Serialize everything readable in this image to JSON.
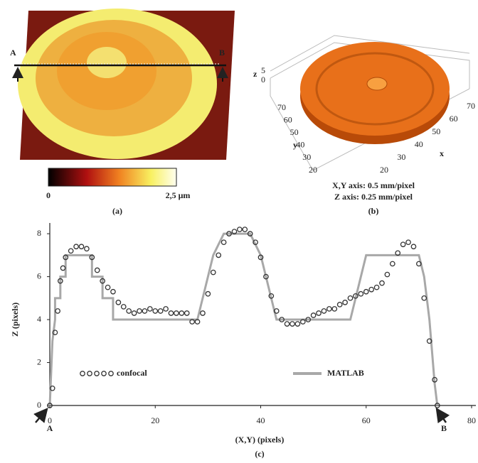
{
  "panel_a": {
    "label_a": "A",
    "label_b": "B",
    "colorbar_min": "0",
    "colorbar_max": "2,5 μm",
    "caption": "(a)"
  },
  "panel_b": {
    "x_label": "x",
    "y_label": "y",
    "z_label": "z",
    "xticks": [
      20,
      30,
      40,
      50,
      60,
      70
    ],
    "yticks": [
      20,
      30,
      40,
      50,
      60,
      70
    ],
    "zticks": [
      0,
      5
    ],
    "note_xy": "X,Y axis: 0.5 mm/pixel",
    "note_z": "Z axis: 0.25 mm/pixel",
    "caption": "(b)"
  },
  "chart_data": {
    "type": "line",
    "xlabel": "(X,Y) (pixels)",
    "ylabel": "Z (pixels)",
    "caption": "(c)",
    "annotations": [
      "A",
      "B"
    ],
    "xlim": [
      0,
      80
    ],
    "ylim": [
      0,
      8.5
    ],
    "xticks": [
      0,
      20,
      40,
      60,
      80
    ],
    "yticks": [
      0,
      2,
      4,
      6,
      8
    ],
    "series": [
      {
        "name": "confocal",
        "color": "#333333",
        "marker": "circle",
        "x": [
          0,
          0.5,
          1,
          1.5,
          2,
          2.5,
          3,
          4,
          5,
          6,
          7,
          8,
          9,
          10,
          11,
          12,
          13,
          14,
          15,
          16,
          17,
          18,
          19,
          20,
          21,
          22,
          23,
          24,
          25,
          26,
          27,
          28,
          29,
          30,
          31,
          32,
          33,
          34,
          35,
          36,
          37,
          38,
          39,
          40,
          41,
          42,
          43,
          44,
          45,
          46,
          47,
          48,
          49,
          50,
          51,
          52,
          53,
          54,
          55,
          56,
          57,
          58,
          59,
          60,
          61,
          62,
          63,
          64,
          65,
          66,
          67,
          68,
          69,
          70,
          71,
          72,
          73,
          73.5
        ],
        "values": [
          0,
          0.8,
          3.4,
          4.4,
          5.8,
          6.4,
          6.9,
          7.2,
          7.4,
          7.4,
          7.3,
          6.9,
          6.3,
          5.8,
          5.5,
          5.3,
          4.8,
          4.6,
          4.4,
          4.3,
          4.4,
          4.4,
          4.5,
          4.4,
          4.4,
          4.5,
          4.3,
          4.3,
          4.3,
          4.3,
          3.9,
          3.9,
          4.3,
          5.2,
          6.2,
          7.0,
          7.6,
          8.0,
          8.1,
          8.2,
          8.2,
          8.0,
          7.6,
          6.9,
          6.0,
          5.1,
          4.4,
          4.0,
          3.8,
          3.8,
          3.8,
          3.9,
          4.0,
          4.2,
          4.3,
          4.4,
          4.5,
          4.5,
          4.7,
          4.8,
          5.0,
          5.1,
          5.2,
          5.3,
          5.4,
          5.5,
          5.7,
          6.1,
          6.6,
          7.1,
          7.5,
          7.6,
          7.4,
          6.6,
          5.0,
          3.0,
          1.2,
          0
        ]
      },
      {
        "name": "MATLAB",
        "color": "#a8a8a8",
        "marker": "none",
        "x": [
          0,
          0.5,
          1,
          1,
          2,
          2,
          3,
          3,
          8,
          8,
          10,
          10,
          12,
          12,
          28,
          29,
          30,
          31,
          33,
          38,
          40,
          41,
          42,
          43,
          57,
          58,
          59,
          60,
          70,
          71,
          72,
          73,
          73.5
        ],
        "values": [
          0,
          3,
          4,
          5,
          5,
          6,
          6,
          7,
          7,
          6,
          6,
          5,
          5,
          4,
          4,
          5,
          6,
          7,
          8,
          8,
          7,
          6,
          5,
          4,
          4,
          5,
          6,
          7,
          7,
          6,
          4,
          1,
          0
        ]
      }
    ]
  }
}
